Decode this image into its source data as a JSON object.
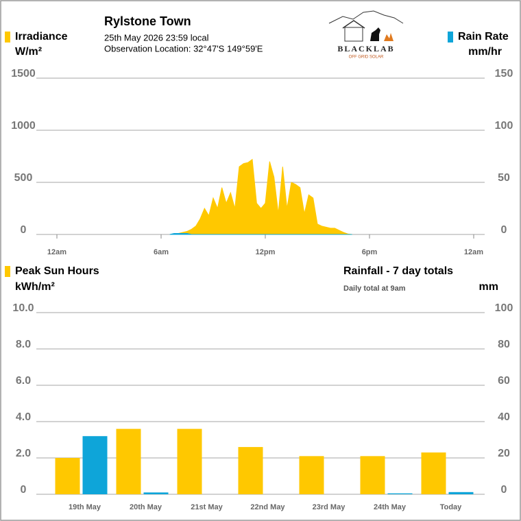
{
  "header": {
    "title": "Rylstone Town",
    "timestamp": "25th May 2026  23:59 local",
    "location": "Observation Location: 32°47'S 149°59'E"
  },
  "logo": {
    "name": "BLACKLAB",
    "tagline": "OFF GRID SOLAR"
  },
  "chart_data": [
    {
      "type": "area",
      "x": [
        6.5,
        6.75,
        7,
        7.25,
        7.5,
        7.75,
        8,
        8.25,
        8.5,
        8.75,
        9,
        9.25,
        9.5,
        9.75,
        10,
        10.25,
        10.5,
        10.75,
        11,
        11.25,
        11.5,
        11.75,
        12,
        12.25,
        12.5,
        12.75,
        13,
        13.25,
        13.5,
        13.75,
        14,
        14.25,
        14.5,
        14.75,
        15,
        15.25,
        15.5,
        15.75,
        16,
        16.25,
        16.5,
        16.75,
        17
      ],
      "xlim": [
        0,
        24
      ],
      "xticks": [
        {
          "value": 0,
          "label": "12am"
        },
        {
          "value": 6,
          "label": "6am"
        },
        {
          "value": 12,
          "label": "12pm"
        },
        {
          "value": 18,
          "label": "6pm"
        },
        {
          "value": 24,
          "label": "12am"
        }
      ],
      "ylim": [
        0,
        1500
      ],
      "yticks": [
        0,
        500,
        1000,
        1500
      ],
      "y2lim": [
        0,
        150
      ],
      "y2ticks": [
        0,
        50,
        100,
        150
      ],
      "grid": true,
      "series": [
        {
          "name": "Irradiance",
          "unit": "W/m²",
          "color": "#ffc800",
          "values": [
            0,
            5,
            10,
            20,
            30,
            50,
            80,
            150,
            250,
            180,
            350,
            250,
            450,
            300,
            400,
            250,
            650,
            680,
            690,
            720,
            300,
            250,
            300,
            700,
            550,
            200,
            650,
            250,
            500,
            480,
            450,
            200,
            380,
            350,
            100,
            80,
            70,
            60,
            60,
            40,
            20,
            5,
            0
          ]
        },
        {
          "name": "Rain Rate",
          "unit": "mm/hr",
          "color": "#0ea5d9",
          "axis": "y2",
          "values": [
            0,
            1,
            1,
            1,
            1,
            0,
            0,
            0,
            0,
            0,
            0,
            0,
            0,
            0,
            0,
            0,
            0,
            0,
            0,
            0,
            0,
            0,
            0,
            0,
            0,
            0,
            0,
            0,
            0,
            0,
            0,
            0,
            0,
            0,
            0,
            0,
            0,
            0,
            0,
            0,
            0,
            0,
            0
          ]
        }
      ]
    },
    {
      "type": "bar",
      "subtitle": "Daily total at 9am",
      "categories": [
        "19th May",
        "20th May",
        "21st May",
        "22nd May",
        "23rd May",
        "24th May",
        "Today"
      ],
      "ylim": [
        0,
        10
      ],
      "yticks": [
        0,
        {
          "value": 2,
          "label": "2.0"
        },
        {
          "value": 4,
          "label": "4.0"
        },
        {
          "value": 6,
          "label": "6.0"
        },
        {
          "value": 8,
          "label": "8.0"
        },
        {
          "value": 10,
          "label": "10.0"
        }
      ],
      "y2lim": [
        0,
        100
      ],
      "y2ticks": [
        0,
        20,
        40,
        60,
        80,
        100
      ],
      "grid": true,
      "series": [
        {
          "name": "Peak Sun Hours",
          "unit": "kWh/m²",
          "color": "#ffc800",
          "values": [
            2.0,
            3.6,
            3.6,
            2.6,
            2.1,
            2.1,
            2.3
          ]
        },
        {
          "name": "Rainfall - 7 day totals",
          "unit": "mm",
          "color": "#0ea5d9",
          "axis": "y2",
          "values": [
            32,
            1,
            0,
            0,
            0,
            0.5,
            1.2
          ]
        }
      ]
    }
  ]
}
